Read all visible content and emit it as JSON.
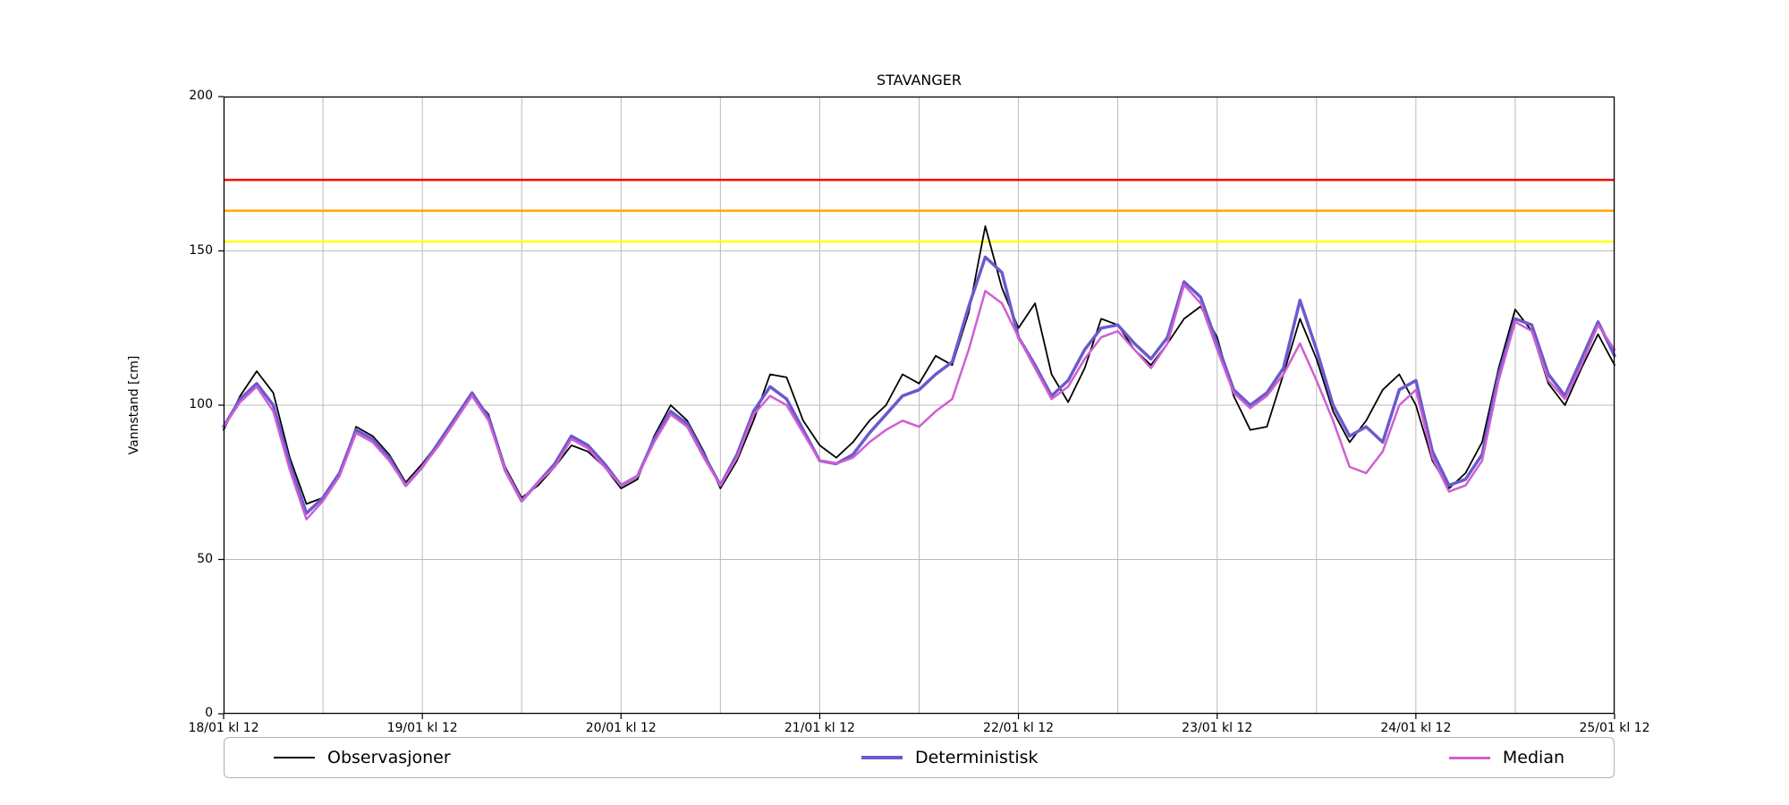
{
  "chart_data": {
    "type": "line",
    "title": "STAVANGER",
    "xlabel": "",
    "ylabel": "Vannstand [cm]",
    "ylim": [
      0,
      200
    ],
    "yticks": [
      0,
      50,
      100,
      150,
      200
    ],
    "x_axis": {
      "unit": "hours from 18/01 kl 12",
      "start": 0,
      "end": 168,
      "step": 2
    },
    "xtick_hours": [
      0,
      24,
      48,
      72,
      96,
      120,
      144,
      168
    ],
    "xtick_labels": [
      "18/01 kl 12",
      "19/01 kl 12",
      "20/01 kl 12",
      "21/01 kl 12",
      "22/01 kl 12",
      "23/01 kl 12",
      "24/01 kl 12",
      "25/01 kl 12"
    ],
    "grid": true,
    "minor_vertical_grid_every_hours": 12,
    "grid_color": "#bbbbbb",
    "legend_position": "bottom",
    "thresholds": [
      {
        "name": "red-alert-level",
        "value": 173,
        "color": "#ff0000"
      },
      {
        "name": "orange-alert-level",
        "value": 163,
        "color": "#ffa500"
      },
      {
        "name": "yellow-alert-level",
        "value": 153,
        "color": "#ffff00"
      }
    ],
    "series": [
      {
        "name": "Observasjoner",
        "color": "#000000",
        "line_width": 1.8,
        "values": [
          92,
          103,
          111,
          104,
          83,
          68,
          70,
          77,
          93,
          90,
          84,
          75,
          81,
          88,
          95,
          103,
          97,
          80,
          70,
          74,
          80,
          87,
          85,
          80,
          73,
          76,
          90,
          100,
          95,
          85,
          73,
          82,
          95,
          110,
          109,
          95,
          87,
          83,
          88,
          95,
          100,
          110,
          107,
          116,
          113,
          130,
          158,
          138,
          125,
          133,
          110,
          101,
          112,
          128,
          126,
          118,
          113,
          120,
          128,
          132,
          122,
          103,
          92,
          93,
          110,
          128,
          115,
          98,
          88,
          95,
          105,
          110,
          100,
          82,
          73,
          78,
          88,
          112,
          131,
          124,
          107,
          100,
          112,
          123,
          113
        ]
      },
      {
        "name": "Deterministisk",
        "color": "#6a5acd",
        "line_width": 3.5,
        "values": [
          93,
          102,
          107,
          100,
          81,
          65,
          70,
          78,
          92,
          89,
          83,
          74,
          80,
          88,
          96,
          104,
          96,
          79,
          69,
          75,
          81,
          90,
          87,
          81,
          74,
          77,
          89,
          98,
          94,
          84,
          74,
          84,
          98,
          106,
          102,
          92,
          82,
          81,
          84,
          91,
          97,
          103,
          105,
          110,
          114,
          132,
          148,
          143,
          122,
          113,
          103,
          108,
          118,
          125,
          126,
          120,
          115,
          122,
          140,
          135,
          120,
          105,
          100,
          104,
          112,
          134,
          118,
          100,
          90,
          93,
          88,
          105,
          108,
          85,
          74,
          76,
          84,
          110,
          128,
          126,
          110,
          103,
          115,
          127,
          116
        ]
      },
      {
        "name": "Median",
        "color": "#d05fd0",
        "line_width": 2.5,
        "values": [
          93,
          101,
          106,
          98,
          79,
          63,
          69,
          77,
          91,
          88,
          82,
          74,
          80,
          87,
          95,
          103,
          95,
          79,
          69,
          75,
          80,
          89,
          86,
          80,
          74,
          77,
          88,
          97,
          93,
          83,
          74,
          83,
          97,
          103,
          100,
          91,
          82,
          81,
          83,
          88,
          92,
          95,
          93,
          98,
          102,
          118,
          137,
          133,
          122,
          112,
          102,
          106,
          115,
          122,
          124,
          118,
          112,
          120,
          139,
          133,
          118,
          104,
          99,
          103,
          110,
          120,
          108,
          95,
          80,
          78,
          85,
          100,
          105,
          83,
          72,
          74,
          82,
          108,
          127,
          124,
          108,
          102,
          113,
          126,
          118
        ]
      }
    ]
  }
}
